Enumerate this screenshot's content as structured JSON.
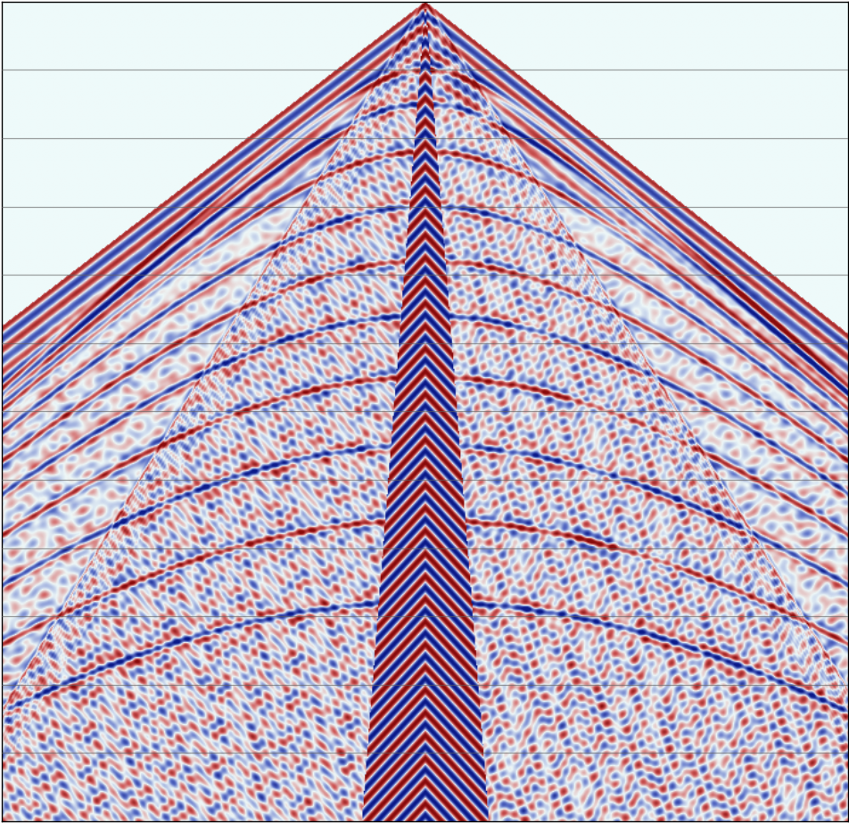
{
  "chart_data": {
    "type": "seismic_gather",
    "tick_labels": false,
    "grid": "y",
    "xlim": [
      -1,
      1
    ],
    "ylim": [
      12,
      0
    ],
    "yticks": [
      1,
      2,
      3,
      4,
      5,
      6,
      7,
      8,
      9,
      10,
      11
    ],
    "first_break": {
      "apex": 0,
      "t_left": 4.75,
      "t_right": 4.87
    },
    "refraction": {
      "t_left": 10.4,
      "t_right": 10.1
    },
    "surface_wave_cone": {
      "half_width_at_bottom": 0.15
    },
    "reflections": {
      "t0": [
        1.0,
        1.5,
        2.2,
        3.0,
        3.8,
        4.6,
        5.5,
        6.5,
        7.6,
        8.8
      ],
      "velocity": 0.18
    }
  }
}
